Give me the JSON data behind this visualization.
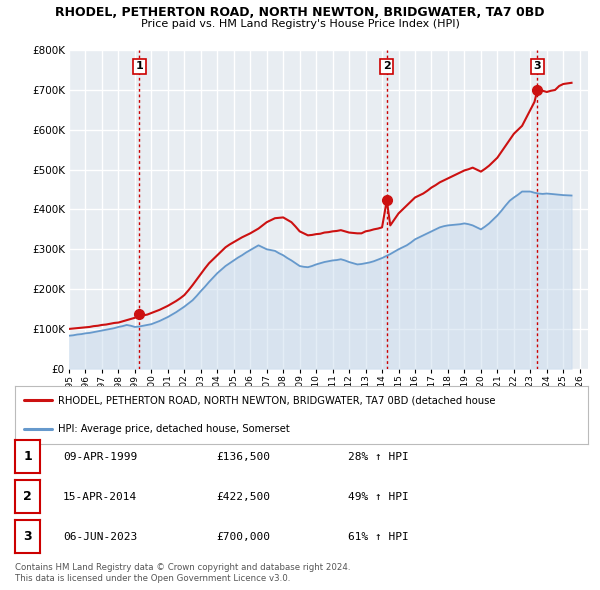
{
  "title": "RHODEL, PETHERTON ROAD, NORTH NEWTON, BRIDGWATER, TA7 0BD",
  "subtitle": "Price paid vs. HM Land Registry's House Price Index (HPI)",
  "plot_bg_color": "#e8edf2",
  "grid_color": "#ffffff",
  "ylim": [
    0,
    800000
  ],
  "yticks": [
    0,
    100000,
    200000,
    300000,
    400000,
    500000,
    600000,
    700000,
    800000
  ],
  "xlim_start": 1995.0,
  "xlim_end": 2026.5,
  "sale_points": [
    {
      "year": 1999.274,
      "price": 136500,
      "label": "1"
    },
    {
      "year": 2014.288,
      "price": 422500,
      "label": "2"
    },
    {
      "year": 2023.432,
      "price": 700000,
      "label": "3"
    }
  ],
  "vline_color": "#cc0000",
  "red_line_color": "#cc1111",
  "blue_line_color": "#6699cc",
  "blue_fill_color": "#c5d8ec",
  "red_years": [
    1995.0,
    1995.25,
    1995.5,
    1995.75,
    1996.0,
    1996.25,
    1996.5,
    1996.75,
    1997.0,
    1997.25,
    1997.5,
    1997.75,
    1998.0,
    1998.25,
    1998.5,
    1998.75,
    1999.0,
    1999.274,
    1999.5,
    1999.75,
    2000.0,
    2000.25,
    2000.5,
    2000.75,
    2001.0,
    2001.25,
    2001.5,
    2001.75,
    2002.0,
    2002.25,
    2002.5,
    2002.75,
    2003.0,
    2003.25,
    2003.5,
    2003.75,
    2004.0,
    2004.25,
    2004.5,
    2004.75,
    2005.0,
    2005.25,
    2005.5,
    2005.75,
    2006.0,
    2006.25,
    2006.5,
    2006.75,
    2007.0,
    2007.25,
    2007.5,
    2007.75,
    2008.0,
    2008.25,
    2008.5,
    2008.75,
    2009.0,
    2009.25,
    2009.5,
    2009.75,
    2010.0,
    2010.25,
    2010.5,
    2010.75,
    2011.0,
    2011.25,
    2011.5,
    2011.75,
    2012.0,
    2012.25,
    2012.5,
    2012.75,
    2013.0,
    2013.25,
    2013.5,
    2013.75,
    2014.0,
    2014.288,
    2014.5,
    2014.75,
    2015.0,
    2015.25,
    2015.5,
    2015.75,
    2016.0,
    2016.25,
    2016.5,
    2016.75,
    2017.0,
    2017.25,
    2017.5,
    2017.75,
    2018.0,
    2018.25,
    2018.5,
    2018.75,
    2019.0,
    2019.25,
    2019.5,
    2019.75,
    2020.0,
    2020.25,
    2020.5,
    2020.75,
    2021.0,
    2021.25,
    2021.5,
    2021.75,
    2022.0,
    2022.25,
    2022.5,
    2022.75,
    2023.0,
    2023.25,
    2023.432,
    2023.75,
    2024.0,
    2024.25,
    2024.5,
    2024.75,
    2025.0,
    2025.5
  ],
  "red_values": [
    100000,
    101000,
    102000,
    103000,
    104000,
    105000,
    107000,
    108000,
    110000,
    111000,
    113000,
    115000,
    116000,
    119000,
    122000,
    125000,
    128000,
    136500,
    134000,
    136000,
    140000,
    144000,
    148000,
    153000,
    158000,
    164000,
    170000,
    177000,
    185000,
    197000,
    210000,
    224000,
    238000,
    252000,
    265000,
    275000,
    285000,
    295000,
    305000,
    312000,
    318000,
    324000,
    330000,
    335000,
    340000,
    346000,
    352000,
    360000,
    368000,
    373000,
    378000,
    379000,
    380000,
    374000,
    368000,
    357000,
    345000,
    340000,
    335000,
    336000,
    338000,
    339000,
    342000,
    343000,
    345000,
    346000,
    348000,
    345000,
    342000,
    341000,
    340000,
    340000,
    345000,
    347000,
    350000,
    352000,
    355000,
    422500,
    360000,
    375000,
    390000,
    400000,
    410000,
    420000,
    430000,
    435000,
    440000,
    447000,
    455000,
    461000,
    468000,
    473000,
    478000,
    483000,
    488000,
    493000,
    498000,
    501000,
    505000,
    500000,
    495000,
    502000,
    510000,
    520000,
    530000,
    545000,
    560000,
    575000,
    590000,
    600000,
    610000,
    630000,
    650000,
    670000,
    700000,
    698000,
    695000,
    698000,
    700000,
    710000,
    715000,
    718000
  ],
  "blue_years": [
    1995.0,
    1995.25,
    1995.5,
    1995.75,
    1996.0,
    1996.25,
    1996.5,
    1996.75,
    1997.0,
    1997.25,
    1997.5,
    1997.75,
    1998.0,
    1998.25,
    1998.5,
    1998.75,
    1999.0,
    1999.25,
    1999.5,
    1999.75,
    2000.0,
    2000.25,
    2000.5,
    2000.75,
    2001.0,
    2001.25,
    2001.5,
    2001.75,
    2002.0,
    2002.25,
    2002.5,
    2002.75,
    2003.0,
    2003.25,
    2003.5,
    2003.75,
    2004.0,
    2004.25,
    2004.5,
    2004.75,
    2005.0,
    2005.25,
    2005.5,
    2005.75,
    2006.0,
    2006.25,
    2006.5,
    2006.75,
    2007.0,
    2007.25,
    2007.5,
    2007.75,
    2008.0,
    2008.25,
    2008.5,
    2008.75,
    2009.0,
    2009.25,
    2009.5,
    2009.75,
    2010.0,
    2010.25,
    2010.5,
    2010.75,
    2011.0,
    2011.25,
    2011.5,
    2011.75,
    2012.0,
    2012.25,
    2012.5,
    2012.75,
    2013.0,
    2013.25,
    2013.5,
    2013.75,
    2014.0,
    2014.25,
    2014.5,
    2014.75,
    2015.0,
    2015.25,
    2015.5,
    2015.75,
    2016.0,
    2016.25,
    2016.5,
    2016.75,
    2017.0,
    2017.25,
    2017.5,
    2017.75,
    2018.0,
    2018.25,
    2018.5,
    2018.75,
    2019.0,
    2019.25,
    2019.5,
    2019.75,
    2020.0,
    2020.25,
    2020.5,
    2020.75,
    2021.0,
    2021.25,
    2021.5,
    2021.75,
    2022.0,
    2022.25,
    2022.5,
    2022.75,
    2023.0,
    2023.25,
    2023.5,
    2023.75,
    2024.0,
    2024.25,
    2024.5,
    2024.75,
    2025.0,
    2025.5
  ],
  "blue_values": [
    83000,
    84000,
    86000,
    87000,
    89000,
    90000,
    92000,
    94000,
    96000,
    98000,
    100000,
    102000,
    105000,
    107000,
    110000,
    108000,
    105000,
    106000,
    108000,
    110000,
    112000,
    116000,
    120000,
    125000,
    130000,
    136000,
    142000,
    149000,
    156000,
    164000,
    172000,
    183000,
    195000,
    206000,
    218000,
    229000,
    240000,
    249000,
    258000,
    265000,
    272000,
    279000,
    285000,
    292000,
    298000,
    304000,
    310000,
    305000,
    300000,
    298000,
    296000,
    290000,
    285000,
    278000,
    272000,
    265000,
    258000,
    256000,
    255000,
    258000,
    262000,
    265000,
    268000,
    270000,
    272000,
    273000,
    275000,
    272000,
    268000,
    265000,
    262000,
    263000,
    265000,
    267000,
    270000,
    274000,
    278000,
    283000,
    288000,
    294000,
    300000,
    305000,
    310000,
    317000,
    325000,
    330000,
    335000,
    340000,
    345000,
    350000,
    355000,
    358000,
    360000,
    361000,
    362000,
    363000,
    365000,
    363000,
    360000,
    355000,
    350000,
    357000,
    365000,
    375000,
    385000,
    397000,
    410000,
    422000,
    430000,
    437000,
    445000,
    445000,
    445000,
    442000,
    440000,
    439000,
    440000,
    439000,
    438000,
    437000,
    436000,
    435000
  ],
  "legend_red_label": "RHODEL, PETHERTON ROAD, NORTH NEWTON, BRIDGWATER, TA7 0BD (detached house",
  "legend_blue_label": "HPI: Average price, detached house, Somerset",
  "table_rows": [
    {
      "num": "1",
      "date": "09-APR-1999",
      "price": "£136,500",
      "pct": "28% ↑ HPI"
    },
    {
      "num": "2",
      "date": "15-APR-2014",
      "price": "£422,500",
      "pct": "49% ↑ HPI"
    },
    {
      "num": "3",
      "date": "06-JUN-2023",
      "price": "£700,000",
      "pct": "61% ↑ HPI"
    }
  ],
  "footnote1": "Contains HM Land Registry data © Crown copyright and database right 2024.",
  "footnote2": "This data is licensed under the Open Government Licence v3.0."
}
